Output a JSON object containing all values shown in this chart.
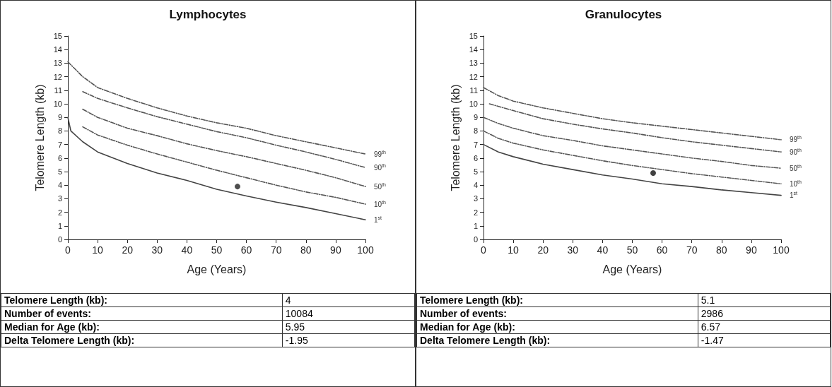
{
  "chart_data": [
    {
      "type": "line",
      "title": "Lymphocytes",
      "xlabel": "Age (Years)",
      "ylabel": "Telomere Length (kb)",
      "xlim": [
        0,
        100
      ],
      "ylim": [
        0,
        15
      ],
      "xticks": [
        0,
        10,
        20,
        30,
        40,
        50,
        60,
        70,
        80,
        90,
        100
      ],
      "yticks": [
        0,
        1,
        2,
        3,
        4,
        5,
        6,
        7,
        8,
        9,
        10,
        11,
        12,
        13,
        14,
        15
      ],
      "grid": false,
      "marker": "none",
      "series": [
        {
          "name": "99$^{th}$",
          "color": "#555555",
          "line_style": "dashed",
          "x": [
            0,
            5,
            10,
            20,
            30,
            40,
            50,
            60,
            70,
            80,
            90,
            100
          ],
          "values": [
            13.1,
            12.0,
            11.2,
            10.4,
            9.7,
            9.1,
            8.6,
            8.2,
            7.65,
            7.2,
            6.75,
            6.3
          ]
        },
        {
          "name": "90$^{th}$",
          "color": "#555555",
          "line_style": "dashed",
          "x": [
            5,
            10,
            20,
            30,
            40,
            50,
            60,
            70,
            80,
            90,
            100
          ],
          "values": [
            10.9,
            10.4,
            9.7,
            9.05,
            8.5,
            7.95,
            7.5,
            6.95,
            6.45,
            5.9,
            5.3
          ]
        },
        {
          "name": "50$^{th}$",
          "color": "#555555",
          "line_style": "dashed",
          "x": [
            5,
            10,
            20,
            30,
            40,
            50,
            60,
            70,
            80,
            90,
            100
          ],
          "values": [
            9.6,
            9.0,
            8.2,
            7.65,
            7.05,
            6.55,
            6.1,
            5.6,
            5.1,
            4.55,
            3.9
          ]
        },
        {
          "name": "10$^{th}$",
          "color": "#555555",
          "line_style": "dashed",
          "x": [
            5,
            10,
            20,
            30,
            40,
            50,
            60,
            70,
            80,
            90,
            100
          ],
          "values": [
            8.3,
            7.7,
            6.95,
            6.3,
            5.7,
            5.1,
            4.55,
            4.0,
            3.5,
            3.1,
            2.6
          ]
        },
        {
          "name": "1$^{st}$",
          "color": "#444444",
          "line_style": "solid",
          "x": [
            0,
            1,
            5,
            10,
            20,
            30,
            40,
            50,
            60,
            70,
            80,
            90,
            100
          ],
          "values": [
            9.0,
            8.0,
            7.2,
            6.45,
            5.6,
            4.9,
            4.35,
            3.7,
            3.2,
            2.75,
            2.35,
            1.9,
            1.45
          ]
        },
        {
          "type": "scatter",
          "marker": "circle",
          "color": "#222222",
          "x": [
            57
          ],
          "values": [
            3.9
          ]
        }
      ],
      "annotations": [
        "Telomere Length (kb):",
        "4",
        "Number of events:",
        "10084",
        "Median for Age (kb):",
        "5.95",
        "Delta Telomere Length (kb):",
        "-1.95"
      ]
    },
    {
      "type": "line",
      "title": "Granulocytes",
      "xlabel": "Age (Years)",
      "ylabel": "Telomere Length (kb)",
      "xlim": [
        0,
        100
      ],
      "ylim": [
        0,
        15
      ],
      "xticks": [
        0,
        10,
        20,
        30,
        40,
        50,
        60,
        70,
        80,
        90,
        100
      ],
      "yticks": [
        0,
        1,
        2,
        3,
        4,
        5,
        6,
        7,
        8,
        9,
        10,
        11,
        12,
        13,
        14,
        15
      ],
      "grid": false,
      "marker": "none",
      "series": [
        {
          "name": "99$^{th}$",
          "color": "#555555",
          "line_style": "dashed",
          "x": [
            0,
            5,
            10,
            20,
            30,
            40,
            50,
            60,
            70,
            80,
            90,
            100
          ],
          "values": [
            11.2,
            10.6,
            10.2,
            9.7,
            9.3,
            8.9,
            8.6,
            8.35,
            8.1,
            7.85,
            7.6,
            7.35
          ]
        },
        {
          "name": "90$^{th}$",
          "color": "#555555",
          "line_style": "dashed",
          "x": [
            2,
            10,
            20,
            30,
            40,
            50,
            60,
            70,
            80,
            90,
            100
          ],
          "values": [
            10.0,
            9.5,
            8.9,
            8.5,
            8.15,
            7.85,
            7.5,
            7.2,
            6.95,
            6.7,
            6.45
          ]
        },
        {
          "name": "50$^{th}$",
          "color": "#555555",
          "line_style": "dashed",
          "x": [
            0,
            5,
            10,
            20,
            30,
            40,
            50,
            60,
            70,
            80,
            90,
            100
          ],
          "values": [
            9.0,
            8.55,
            8.2,
            7.65,
            7.3,
            6.9,
            6.6,
            6.3,
            6.0,
            5.75,
            5.45,
            5.25
          ]
        },
        {
          "name": "10$^{th}$",
          "color": "#555555",
          "line_style": "dashed",
          "x": [
            0,
            5,
            10,
            20,
            30,
            40,
            50,
            60,
            70,
            80,
            90,
            100
          ],
          "values": [
            8.0,
            7.45,
            7.1,
            6.6,
            6.2,
            5.8,
            5.45,
            5.15,
            4.85,
            4.6,
            4.35,
            4.1
          ]
        },
        {
          "name": "1$^{st}$",
          "color": "#444444",
          "line_style": "solid",
          "x": [
            0,
            5,
            10,
            20,
            30,
            40,
            50,
            60,
            70,
            80,
            90,
            100
          ],
          "values": [
            7.0,
            6.45,
            6.1,
            5.55,
            5.15,
            4.75,
            4.45,
            4.1,
            3.9,
            3.65,
            3.45,
            3.25
          ]
        },
        {
          "type": "scatter",
          "marker": "circle",
          "color": "#111111",
          "x": [
            57
          ],
          "values": [
            4.9
          ]
        }
      ],
      "annotations": [
        "Telomere Length (kb):",
        "5.1",
        "Number of events:",
        "2986",
        "Median for Age (kb):",
        "6.57",
        "Delta Telomere Length (kb):",
        "-1.47"
      ]
    }
  ]
}
